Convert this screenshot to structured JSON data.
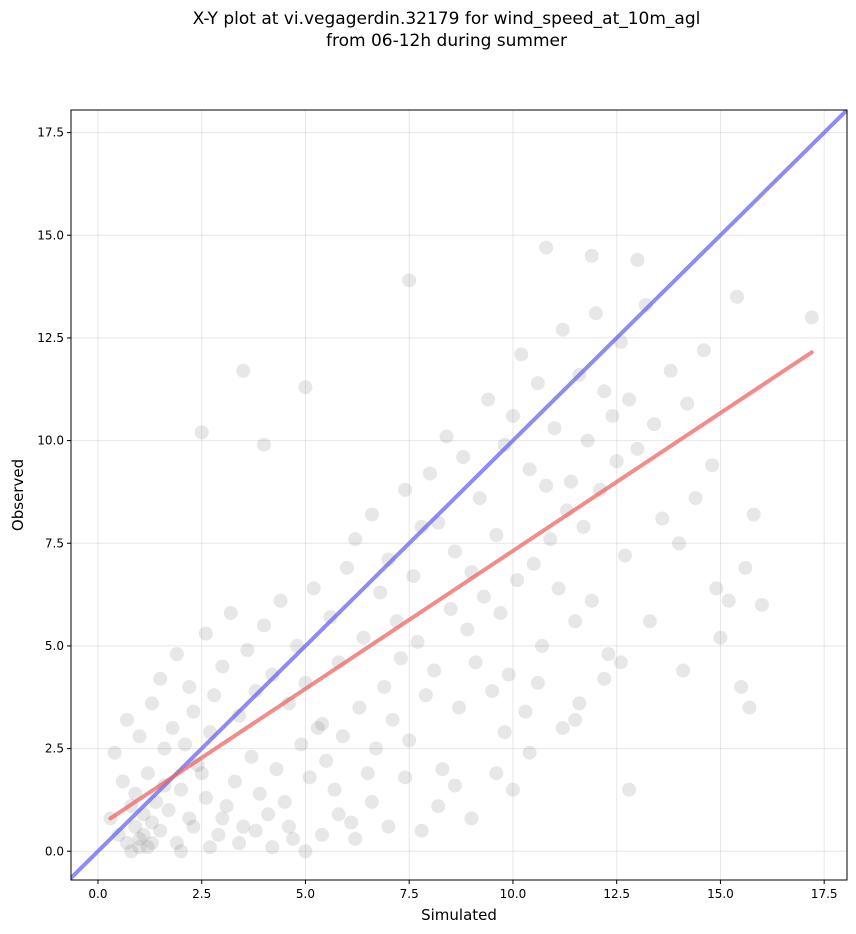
{
  "chart_data": {
    "type": "scatter",
    "title_line1": "X-Y plot at vi.vegagerdin.32179 for wind_speed_at_10m_agl",
    "title_line2": "from 06-12h during summer",
    "xlabel": "Simulated",
    "ylabel": "Observed",
    "xlim": [
      -0.65,
      18.05
    ],
    "ylim": [
      -0.7,
      18.05
    ],
    "xticks": [
      0.0,
      2.5,
      5.0,
      7.5,
      10.0,
      12.5,
      15.0,
      17.5
    ],
    "yticks": [
      0.0,
      2.5,
      5.0,
      7.5,
      10.0,
      12.5,
      15.0,
      17.5
    ],
    "xtick_labels": [
      "0.0",
      "2.5",
      "5.0",
      "7.5",
      "10.0",
      "12.5",
      "15.0",
      "17.5"
    ],
    "ytick_labels": [
      "0.0",
      "2.5",
      "5.0",
      "7.5",
      "10.0",
      "12.5",
      "15.0",
      "17.5"
    ],
    "grid": true,
    "point_color": "#555555",
    "reference_line": {
      "name": "1:1",
      "color": "#6666ee",
      "x": [
        -0.65,
        18.05
      ],
      "y": [
        -0.65,
        18.05
      ]
    },
    "regression_line": {
      "color": "#ee6666",
      "x": [
        0.3,
        17.2
      ],
      "y": [
        0.8,
        12.15
      ]
    },
    "points": [
      [
        0.3,
        0.8
      ],
      [
        0.5,
        0.4
      ],
      [
        0.7,
        0.2
      ],
      [
        0.8,
        0.0
      ],
      [
        0.9,
        0.6
      ],
      [
        1.0,
        0.3
      ],
      [
        1.1,
        0.9
      ],
      [
        1.2,
        0.1
      ],
      [
        1.3,
        0.7
      ],
      [
        1.4,
        1.2
      ],
      [
        0.6,
        1.7
      ],
      [
        0.9,
        1.4
      ],
      [
        1.2,
        1.9
      ],
      [
        1.5,
        0.5
      ],
      [
        1.7,
        1.0
      ],
      [
        1.9,
        0.2
      ],
      [
        2.0,
        1.5
      ],
      [
        2.2,
        0.8
      ],
      [
        2.4,
        2.1
      ],
      [
        2.6,
        1.3
      ],
      [
        0.4,
        2.4
      ],
      [
        0.7,
        3.2
      ],
      [
        1.0,
        2.8
      ],
      [
        1.3,
        3.6
      ],
      [
        1.6,
        2.5
      ],
      [
        1.8,
        3.0
      ],
      [
        2.1,
        2.6
      ],
      [
        2.3,
        3.4
      ],
      [
        2.5,
        1.9
      ],
      [
        2.7,
        2.9
      ],
      [
        2.9,
        0.4
      ],
      [
        3.1,
        1.1
      ],
      [
        3.3,
        1.7
      ],
      [
        3.5,
        0.6
      ],
      [
        3.7,
        2.3
      ],
      [
        3.9,
        1.4
      ],
      [
        4.1,
        0.9
      ],
      [
        4.3,
        2.0
      ],
      [
        4.5,
        1.2
      ],
      [
        4.7,
        0.3
      ],
      [
        1.5,
        4.2
      ],
      [
        1.9,
        4.8
      ],
      [
        2.2,
        4.0
      ],
      [
        2.6,
        5.3
      ],
      [
        2.8,
        3.8
      ],
      [
        3.0,
        4.5
      ],
      [
        3.2,
        5.8
      ],
      [
        3.4,
        3.3
      ],
      [
        3.6,
        4.9
      ],
      [
        3.8,
        3.9
      ],
      [
        4.0,
        5.5
      ],
      [
        4.2,
        4.3
      ],
      [
        4.4,
        6.1
      ],
      [
        4.6,
        3.6
      ],
      [
        4.8,
        5.0
      ],
      [
        5.0,
        4.1
      ],
      [
        5.2,
        6.4
      ],
      [
        5.4,
        3.1
      ],
      [
        5.6,
        5.7
      ],
      [
        5.8,
        4.6
      ],
      [
        4.9,
        2.6
      ],
      [
        5.1,
        1.8
      ],
      [
        5.3,
        3.0
      ],
      [
        5.5,
        2.2
      ],
      [
        5.7,
        1.5
      ],
      [
        5.9,
        2.8
      ],
      [
        6.1,
        0.7
      ],
      [
        6.3,
        3.5
      ],
      [
        6.5,
        1.9
      ],
      [
        6.7,
        2.5
      ],
      [
        6.0,
        6.9
      ],
      [
        6.2,
        7.6
      ],
      [
        6.4,
        5.2
      ],
      [
        6.6,
        8.2
      ],
      [
        6.8,
        6.3
      ],
      [
        7.0,
        7.1
      ],
      [
        7.2,
        5.6
      ],
      [
        7.4,
        8.8
      ],
      [
        7.6,
        6.7
      ],
      [
        7.8,
        7.9
      ],
      [
        6.9,
        4.0
      ],
      [
        7.1,
        3.2
      ],
      [
        7.3,
        4.7
      ],
      [
        7.5,
        2.7
      ],
      [
        7.7,
        5.1
      ],
      [
        7.9,
        3.8
      ],
      [
        8.1,
        4.4
      ],
      [
        8.3,
        2.0
      ],
      [
        8.5,
        5.9
      ],
      [
        8.7,
        3.5
      ],
      [
        8.0,
        9.2
      ],
      [
        8.2,
        8.0
      ],
      [
        8.4,
        10.1
      ],
      [
        8.6,
        7.3
      ],
      [
        8.8,
        9.6
      ],
      [
        9.0,
        6.8
      ],
      [
        9.2,
        8.6
      ],
      [
        9.4,
        11.0
      ],
      [
        9.6,
        7.7
      ],
      [
        9.8,
        9.9
      ],
      [
        8.9,
        5.4
      ],
      [
        9.1,
        4.6
      ],
      [
        9.3,
        6.2
      ],
      [
        9.5,
        3.9
      ],
      [
        9.7,
        5.8
      ],
      [
        9.9,
        4.3
      ],
      [
        10.1,
        6.6
      ],
      [
        10.3,
        3.4
      ],
      [
        10.5,
        7.0
      ],
      [
        10.7,
        5.0
      ],
      [
        10.0,
        10.6
      ],
      [
        10.2,
        12.1
      ],
      [
        10.4,
        9.3
      ],
      [
        10.6,
        11.4
      ],
      [
        10.8,
        8.9
      ],
      [
        11.0,
        10.3
      ],
      [
        11.2,
        12.7
      ],
      [
        11.4,
        9.0
      ],
      [
        11.6,
        11.6
      ],
      [
        11.8,
        10.0
      ],
      [
        10.9,
        7.6
      ],
      [
        11.1,
        6.4
      ],
      [
        11.3,
        8.3
      ],
      [
        11.5,
        5.6
      ],
      [
        11.7,
        7.9
      ],
      [
        11.9,
        6.1
      ],
      [
        12.1,
        8.8
      ],
      [
        12.3,
        4.8
      ],
      [
        12.5,
        9.5
      ],
      [
        12.7,
        7.2
      ],
      [
        12.0,
        13.1
      ],
      [
        12.2,
        11.2
      ],
      [
        12.4,
        10.6
      ],
      [
        12.6,
        12.4
      ],
      [
        12.8,
        11.0
      ],
      [
        13.0,
        9.8
      ],
      [
        13.2,
        13.3
      ],
      [
        13.4,
        10.4
      ],
      [
        13.6,
        8.1
      ],
      [
        13.8,
        11.7
      ],
      [
        14.0,
        7.5
      ],
      [
        14.2,
        10.9
      ],
      [
        14.4,
        8.6
      ],
      [
        14.6,
        12.2
      ],
      [
        14.8,
        9.4
      ],
      [
        15.0,
        5.2
      ],
      [
        15.2,
        6.1
      ],
      [
        15.4,
        13.5
      ],
      [
        15.6,
        6.9
      ],
      [
        15.8,
        8.2
      ],
      [
        7.5,
        13.9
      ],
      [
        10.8,
        14.7
      ],
      [
        11.9,
        14.5
      ],
      [
        13.0,
        14.4
      ],
      [
        3.5,
        11.7
      ],
      [
        2.5,
        10.2
      ],
      [
        4.0,
        9.9
      ],
      [
        5.0,
        11.3
      ],
      [
        17.2,
        13.0
      ],
      [
        15.7,
        3.5
      ],
      [
        12.8,
        1.5
      ],
      [
        14.1,
        4.4
      ],
      [
        15.5,
        4.0
      ],
      [
        14.9,
        6.4
      ],
      [
        16.0,
        6.0
      ],
      [
        1.0,
        0.1
      ],
      [
        1.1,
        0.4
      ],
      [
        0.8,
        1.1
      ],
      [
        1.3,
        0.2
      ],
      [
        1.6,
        1.6
      ],
      [
        2.0,
        0.0
      ],
      [
        2.3,
        0.6
      ],
      [
        2.7,
        0.1
      ],
      [
        3.0,
        0.8
      ],
      [
        3.4,
        0.2
      ],
      [
        3.8,
        0.5
      ],
      [
        4.2,
        0.1
      ],
      [
        4.6,
        0.6
      ],
      [
        5.0,
        0.0
      ],
      [
        5.4,
        0.4
      ],
      [
        5.8,
        0.9
      ],
      [
        6.2,
        0.3
      ],
      [
        6.6,
        1.2
      ],
      [
        7.0,
        0.6
      ],
      [
        7.4,
        1.8
      ],
      [
        7.8,
        0.5
      ],
      [
        8.2,
        1.1
      ],
      [
        8.6,
        1.6
      ],
      [
        9.0,
        0.8
      ],
      [
        9.6,
        1.9
      ],
      [
        10.0,
        1.5
      ],
      [
        10.4,
        2.4
      ],
      [
        9.8,
        2.9
      ],
      [
        10.6,
        4.1
      ],
      [
        11.2,
        3.0
      ],
      [
        11.6,
        3.6
      ],
      [
        12.2,
        4.2
      ],
      [
        12.6,
        4.6
      ],
      [
        11.5,
        3.2
      ],
      [
        13.3,
        5.6
      ]
    ]
  }
}
